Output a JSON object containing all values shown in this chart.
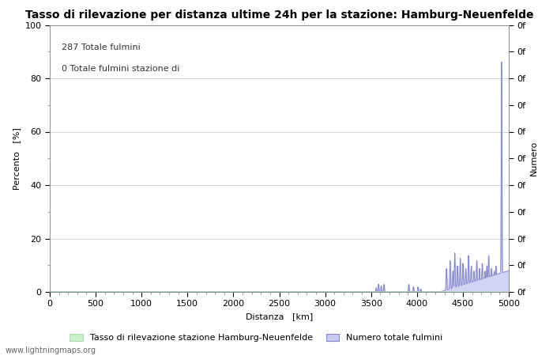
{
  "title": "Tasso di rilevazione per distanza ultime 24h per la stazione: Hamburg-Neuenfelde",
  "xlabel": "Distanza   [km]",
  "ylabel_left": "Percento   [%]",
  "ylabel_right": "Numero",
  "annotation_line1": "287 Totale fulmini",
  "annotation_line2": "0 Totale fulmini stazione di",
  "xlim": [
    0,
    5000
  ],
  "ylim_left": [
    0,
    100
  ],
  "xticks": [
    0,
    500,
    1000,
    1500,
    2000,
    2500,
    3000,
    3500,
    4000,
    4500,
    5000
  ],
  "yticks_left": [
    0,
    20,
    40,
    60,
    80,
    100
  ],
  "right_ytick_labels": [
    "0f",
    "0f",
    "0f",
    "0f",
    "0f",
    "0f",
    "0f",
    "0f",
    "0f",
    "0f",
    "0f"
  ],
  "legend_label_green": "Tasso di rilevazione stazione Hamburg-Neuenfelde",
  "legend_label_blue": "Numero totale fulmini",
  "fill_color": "#c8c8f0",
  "fill_alpha": 0.8,
  "line_color": "#8888cc",
  "bg_color": "#ffffff",
  "grid_color": "#c0c0c0",
  "watermark": "www.lightningmaps.org",
  "title_fontsize": 10,
  "axis_fontsize": 8,
  "tick_fontsize": 8
}
